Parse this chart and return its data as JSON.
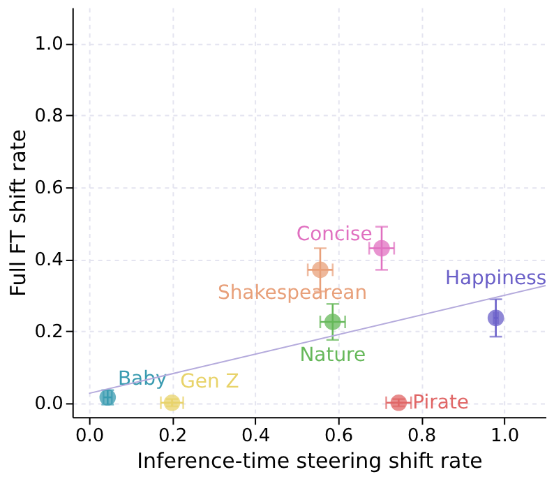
{
  "chart_data": {
    "type": "scatter",
    "xlabel": "Inference-time steering shift rate",
    "ylabel": "Full FT shift rate",
    "xlim": [
      -0.04,
      1.1
    ],
    "ylim": [
      -0.04,
      1.1
    ],
    "xticks": [
      {
        "value": 0,
        "label": "0.0"
      },
      0.2,
      0.4,
      0.6,
      0.8,
      {
        "value": 1,
        "label": "1.0"
      }
    ],
    "yticks": [
      {
        "value": 0,
        "label": "0.0"
      },
      0.2,
      0.4,
      0.6,
      0.8,
      {
        "value": 1,
        "label": "1.0"
      }
    ],
    "grid": true,
    "marker": "circle",
    "series": [
      {
        "name": "Baby",
        "color": "#3a9bb0",
        "x": [
          0.045
        ],
        "values": [
          0.015
        ],
        "errors": [
          0.02
        ],
        "xerrors": [
          0.01
        ]
      },
      {
        "name": "Gen Z",
        "color": "#e8d36a",
        "x": [
          0.2
        ],
        "values": [
          0.0
        ],
        "errors": [
          0.01
        ],
        "xerrors": [
          0.027
        ]
      },
      {
        "name": "Pirate",
        "color": "#e06666",
        "x": [
          0.746
        ],
        "values": [
          0.0
        ],
        "errors": [
          0.01
        ],
        "xerrors": [
          0.03
        ]
      },
      {
        "name": "Happiness",
        "color": "#6a5fc8",
        "x": [
          0.98
        ],
        "values": [
          0.236
        ],
        "errors": [
          0.052
        ],
        "xerrors": [
          0.005
        ]
      },
      {
        "name": "Nature",
        "color": "#66b85a",
        "x": [
          0.587
        ],
        "values": [
          0.225
        ],
        "errors": [
          0.05
        ],
        "xerrors": [
          0.03
        ]
      },
      {
        "name": "Shakespearean",
        "color": "#e8a07a",
        "x": [
          0.557
        ],
        "values": [
          0.37
        ],
        "errors": [
          0.06
        ],
        "xerrors": [
          0.03
        ]
      },
      {
        "name": "Concise",
        "color": "#e070c0",
        "x": [
          0.705
        ],
        "values": [
          0.43
        ],
        "errors": [
          0.06
        ],
        "xerrors": [
          0.03
        ]
      },
      {
        "type": "line",
        "color": "#b4aadc",
        "x": [
          0.0,
          1.1
        ],
        "values": [
          0.026,
          0.326
        ],
        "line_style": "solid",
        "marker": "none"
      }
    ]
  }
}
